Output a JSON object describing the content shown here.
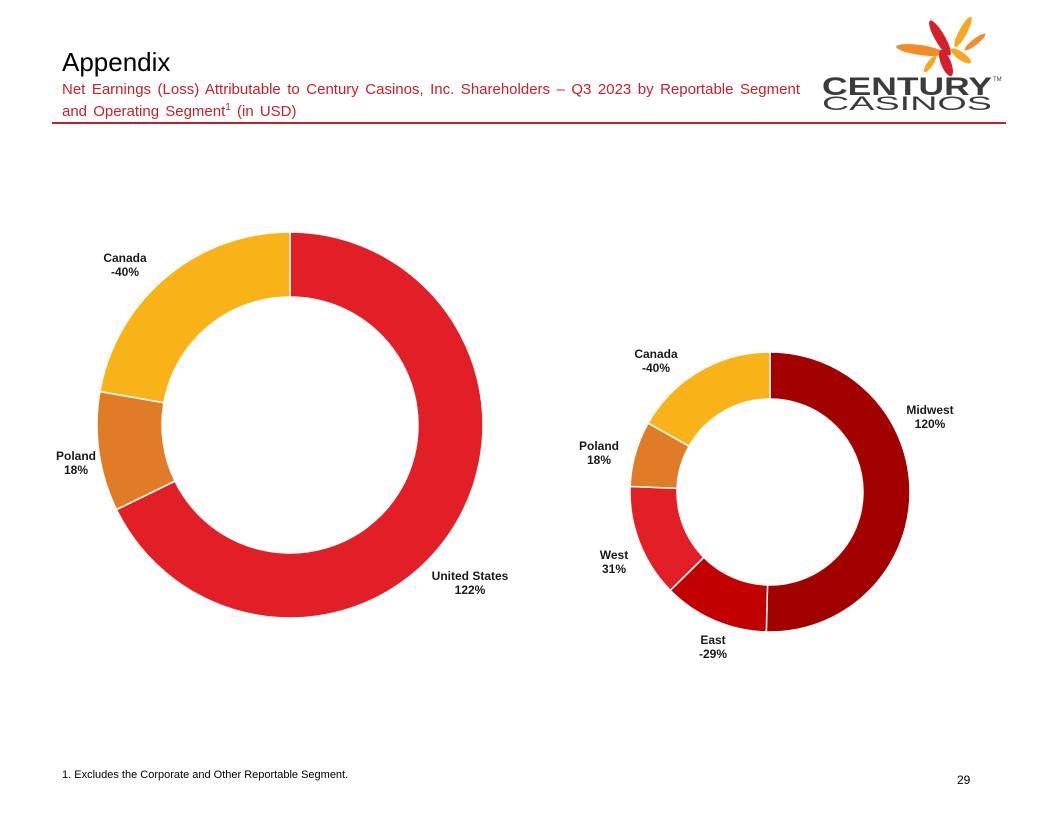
{
  "header": {
    "title": "Appendix",
    "subtitle": "Net Earnings (Loss) Attributable to Century Casinos, Inc. Shareholders – Q3 2023 by Reportable Segment and Operating Segment",
    "subtitle_sup": "1",
    "subtitle_suffix": " (in USD)"
  },
  "logo": {
    "line1": "CENTURY",
    "line2": "CASINOS",
    "tm": "TM"
  },
  "chart_data": [
    {
      "type": "pie",
      "variant": "donut",
      "title": "",
      "slices": [
        {
          "label": "United States",
          "value_label": "122%",
          "value": 122,
          "color": "#e21f26"
        },
        {
          "label": "Poland",
          "value_label": "18%",
          "value": 18,
          "color": "#e07c27"
        },
        {
          "label": "Canada",
          "value_label": "-40%",
          "value": 40,
          "color": "#fab219"
        }
      ]
    },
    {
      "type": "pie",
      "variant": "donut",
      "title": "",
      "slices": [
        {
          "label": "Midwest",
          "value_label": "120%",
          "value": 120,
          "color": "#a30000"
        },
        {
          "label": "East",
          "value_label": "-29%",
          "value": 29,
          "color": "#c20000"
        },
        {
          "label": "West",
          "value_label": "31%",
          "value": 31,
          "color": "#e21f26"
        },
        {
          "label": "Poland",
          "value_label": "18%",
          "value": 18,
          "color": "#e07c27"
        },
        {
          "label": "Canada",
          "value_label": "-40%",
          "value": 40,
          "color": "#fab219"
        }
      ]
    }
  ],
  "footnote": "1. Excludes the Corporate and Other Reportable Segment.",
  "page_number": "29"
}
